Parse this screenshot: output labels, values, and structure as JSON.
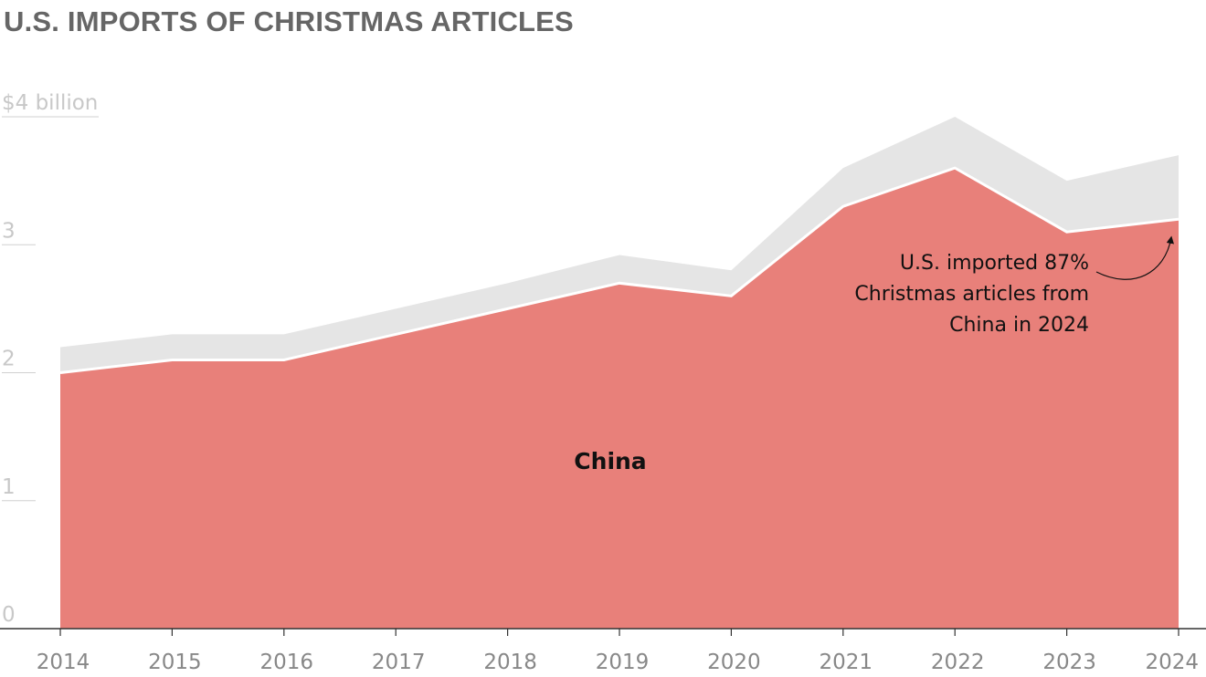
{
  "title": "U.S. IMPORTS OF CHRISTMAS ARTICLES",
  "chart_data": {
    "type": "area",
    "x": [
      "2014",
      "2015",
      "2016",
      "2017",
      "2018",
      "2019",
      "2020",
      "2021",
      "2022",
      "2023",
      "2024"
    ],
    "ylim": [
      0,
      4
    ],
    "yticks": [
      {
        "value": 4,
        "label": "$4 billion"
      },
      {
        "value": 3,
        "label": "3"
      },
      {
        "value": 2,
        "label": "2"
      },
      {
        "value": 1,
        "label": "1"
      },
      {
        "value": 0,
        "label": "0"
      }
    ],
    "series": [
      {
        "name": "China",
        "values": [
          2.0,
          2.1,
          2.1,
          2.3,
          2.5,
          2.7,
          2.6,
          3.3,
          3.6,
          3.1,
          3.2
        ],
        "color": "#e8807a"
      },
      {
        "values": [
          0.2,
          0.2,
          0.2,
          0.2,
          0.2,
          0.22,
          0.2,
          0.3,
          0.4,
          0.4,
          0.5
        ],
        "color": "#e5e5e5"
      }
    ],
    "annotation": {
      "lines": [
        "U.S. imported 87%",
        "Christmas articles from",
        "China in 2024"
      ],
      "target": "2024"
    },
    "grid": false
  }
}
